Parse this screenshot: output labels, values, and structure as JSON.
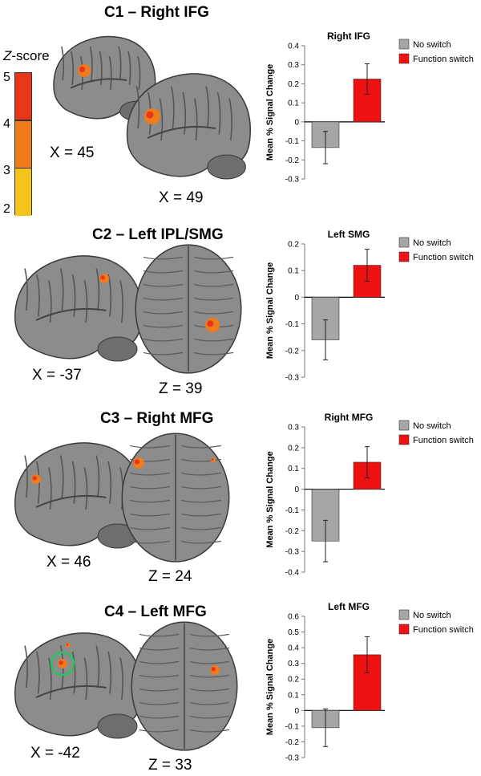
{
  "colorbar": {
    "title_letter": "Z",
    "title_rest": "-score",
    "ticks": [
      "5",
      "4",
      "3",
      "2"
    ],
    "colors": [
      "#e8361c",
      "#f07b1a",
      "#f5c41c"
    ]
  },
  "panels": [
    {
      "title": "C1 – Right IFG",
      "coords": [
        "X = 45",
        "X = 49"
      ],
      "views": [
        "sagittal",
        "sagittal"
      ]
    },
    {
      "title": "C2 – Left IPL/SMG",
      "coords": [
        "X = -37",
        "Z = 39"
      ],
      "views": [
        "sagittal",
        "axial"
      ]
    },
    {
      "title": "C3 – Right MFG",
      "coords": [
        "X = 46",
        "Z = 24"
      ],
      "views": [
        "sagittal",
        "axial"
      ]
    },
    {
      "title": "C4 – Left MFG",
      "coords": [
        "X = -42",
        "Z = 33"
      ],
      "views": [
        "sagittal",
        "axial"
      ]
    }
  ],
  "chart_data": [
    {
      "type": "bar",
      "title": "Right IFG",
      "ylabel": "Mean % Signal Change",
      "categories": [
        "No switch",
        "Function switch"
      ],
      "values": [
        -0.135,
        0.225
      ],
      "errors": [
        0.085,
        0.08
      ],
      "colors": [
        "#a6a6a6",
        "#ee1111"
      ],
      "ylim": [
        -0.3,
        0.4
      ],
      "yticks": [
        0.4,
        0.3,
        0.2,
        0.1,
        0,
        -0.1,
        -0.2,
        -0.3
      ],
      "legend": [
        "No switch",
        "Function switch"
      ],
      "legend_position": "top-right"
    },
    {
      "type": "bar",
      "title": "Left SMG",
      "ylabel": "Mean % Signal Change",
      "categories": [
        "No switch",
        "Function switch"
      ],
      "values": [
        -0.16,
        0.12
      ],
      "errors": [
        0.075,
        0.06
      ],
      "colors": [
        "#a6a6a6",
        "#ee1111"
      ],
      "ylim": [
        -0.3,
        0.2
      ],
      "yticks": [
        0.2,
        0.1,
        0,
        -0.1,
        -0.2,
        -0.3
      ],
      "legend": [
        "No switch",
        "Function switch"
      ],
      "legend_position": "top-right"
    },
    {
      "type": "bar",
      "title": "Right MFG",
      "ylabel": "Mean % Signal Change",
      "categories": [
        "No switch",
        "Function switch"
      ],
      "values": [
        -0.25,
        0.13
      ],
      "errors": [
        0.1,
        0.075
      ],
      "colors": [
        "#a6a6a6",
        "#ee1111"
      ],
      "ylim": [
        -0.4,
        0.3
      ],
      "yticks": [
        0.3,
        0.2,
        0.1,
        0,
        -0.1,
        -0.2,
        -0.3,
        -0.4
      ],
      "legend": [
        "No switch",
        "Function switch"
      ],
      "legend_position": "top-right"
    },
    {
      "type": "bar",
      "title": "Left MFG",
      "ylabel": "Mean % Signal Change",
      "categories": [
        "No switch",
        "Function switch"
      ],
      "values": [
        -0.11,
        0.355
      ],
      "errors": [
        0.12,
        0.115
      ],
      "colors": [
        "#a6a6a6",
        "#ee1111"
      ],
      "ylim": [
        -0.3,
        0.6
      ],
      "yticks": [
        0.6,
        0.5,
        0.4,
        0.3,
        0.2,
        0.1,
        0,
        -0.1,
        -0.2,
        -0.3
      ],
      "legend": [
        "No switch",
        "Function switch"
      ],
      "legend_position": "top-right"
    }
  ]
}
